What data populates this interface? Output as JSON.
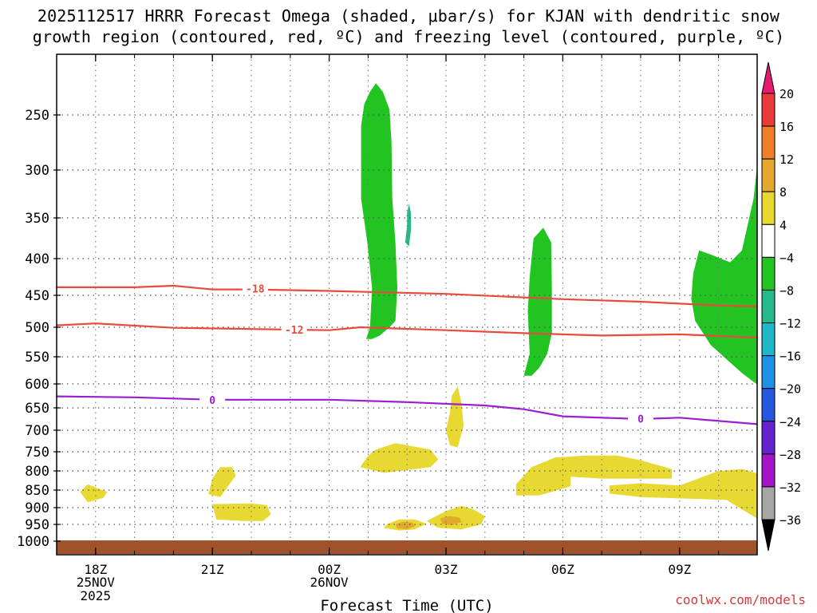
{
  "chart_data": {
    "type": "heatmap",
    "title_line1": "2025112517 HRRR Forecast Omega (shaded, μbar/s) for KJAN with dendritic snow",
    "title_line2": "growth region (contoured, red, ºC) and freezing level (contoured, purple, ºC)",
    "xlabel": "Forecast Time (UTC)",
    "ylabel": "",
    "x_ticks": [
      {
        "hour": 1,
        "label": "18Z",
        "date": "25NOV",
        "year": "2025"
      },
      {
        "hour": 4,
        "label": "21Z"
      },
      {
        "hour": 7,
        "label": "00Z",
        "date": "26NOV"
      },
      {
        "hour": 10,
        "label": "03Z"
      },
      {
        "hour": 13,
        "label": "06Z"
      },
      {
        "hour": 16,
        "label": "09Z"
      }
    ],
    "xlim": [
      0,
      18.5
    ],
    "y_ticks": [
      250,
      300,
      350,
      400,
      450,
      500,
      550,
      600,
      650,
      700,
      750,
      800,
      850,
      900,
      950,
      1000
    ],
    "ylim_hPa": [
      200,
      1030
    ],
    "colorbar": {
      "labels": [
        "20",
        "16",
        "12",
        "8",
        "4",
        "−4",
        "−8",
        "−12",
        "−16",
        "−20",
        "−24",
        "−28",
        "−32",
        "−36"
      ],
      "colors": [
        "#e61973",
        "#e83a3a",
        "#f07f2a",
        "#e3a92f",
        "#e7d832",
        "#ffffff",
        "#21c421",
        "#26b98a",
        "#1fb8c8",
        "#1e90e6",
        "#2456e0",
        "#6423cf",
        "#a414c8",
        "#a6a6a6",
        "#000000"
      ]
    },
    "contours": [
      {
        "label": "-18",
        "color": "#e84a3c",
        "points": [
          [
            0,
            439
          ],
          [
            2,
            439
          ],
          [
            3,
            437
          ],
          [
            4,
            442
          ],
          [
            5,
            442
          ],
          [
            7,
            444
          ],
          [
            10,
            448
          ],
          [
            13,
            456
          ],
          [
            15,
            460
          ],
          [
            17,
            466
          ],
          [
            18.5,
            468
          ]
        ],
        "label_at": [
          5.1,
          441
        ]
      },
      {
        "label": "-12",
        "color": "#e84a3c",
        "points": [
          [
            0,
            497
          ],
          [
            1,
            494
          ],
          [
            3,
            501
          ],
          [
            5,
            503
          ],
          [
            7,
            505
          ],
          [
            7.8,
            500
          ],
          [
            10,
            505
          ],
          [
            12,
            510
          ],
          [
            14,
            514
          ],
          [
            16,
            512
          ],
          [
            18.5,
            519
          ]
        ],
        "label_at": [
          6.1,
          504
        ]
      },
      {
        "label": "0",
        "color": "#9b1fd0",
        "points": [
          [
            0,
            626
          ],
          [
            2,
            628
          ],
          [
            4,
            633
          ],
          [
            7,
            633
          ],
          [
            9,
            638
          ],
          [
            11,
            645
          ],
          [
            12,
            653
          ],
          [
            13,
            669
          ],
          [
            15,
            675
          ],
          [
            16,
            672
          ],
          [
            18.5,
            690
          ]
        ],
        "label_at": [
          4.0,
          633
        ],
        "label2_at": [
          15.0,
          674
        ]
      }
    ],
    "shaded_regions": [
      {
        "value": "-4 to -8",
        "color": "#21c421",
        "outline": [
          [
            7.95,
            520
          ],
          [
            8.05,
            500
          ],
          [
            8.1,
            440
          ],
          [
            7.98,
            380
          ],
          [
            7.82,
            330
          ],
          [
            7.82,
            260
          ],
          [
            7.9,
            240
          ],
          [
            8.05,
            228
          ],
          [
            8.2,
            220
          ],
          [
            8.38,
            228
          ],
          [
            8.55,
            245
          ],
          [
            8.6,
            275
          ],
          [
            8.62,
            330
          ],
          [
            8.7,
            380
          ],
          [
            8.75,
            440
          ],
          [
            8.7,
            490
          ],
          [
            8.55,
            500
          ],
          [
            8.3,
            514
          ],
          [
            8.1,
            520
          ]
        ]
      },
      {
        "value": "-8 to -12",
        "color": "#26b98a",
        "outline": [
          [
            8.95,
            380
          ],
          [
            9.0,
            360
          ],
          [
            9.0,
            345
          ],
          [
            9.05,
            335
          ],
          [
            9.1,
            345
          ],
          [
            9.1,
            365
          ],
          [
            9.05,
            385
          ]
        ]
      },
      {
        "value": "-4 to -8",
        "color": "#21c421",
        "outline": [
          [
            12.0,
            585
          ],
          [
            12.15,
            545
          ],
          [
            12.1,
            475
          ],
          [
            12.15,
            425
          ],
          [
            12.25,
            375
          ],
          [
            12.5,
            362
          ],
          [
            12.7,
            380
          ],
          [
            12.72,
            440
          ],
          [
            12.72,
            510
          ],
          [
            12.6,
            545
          ],
          [
            12.4,
            570
          ],
          [
            12.2,
            585
          ]
        ]
      },
      {
        "value": "-4 to -8",
        "color": "#21c421",
        "outline": [
          [
            16.3,
            455
          ],
          [
            16.35,
            420
          ],
          [
            16.5,
            390
          ],
          [
            16.8,
            395
          ],
          [
            17.3,
            405
          ],
          [
            17.6,
            390
          ],
          [
            17.9,
            330
          ],
          [
            18.1,
            260
          ],
          [
            18.3,
            238
          ],
          [
            18.5,
            230
          ],
          [
            18.5,
            650
          ],
          [
            18.1,
            608
          ],
          [
            17.6,
            580
          ],
          [
            16.8,
            530
          ],
          [
            16.4,
            490
          ]
        ]
      },
      {
        "value": "4 to 8",
        "color": "#e7d832",
        "outline": [
          [
            7.8,
            790
          ],
          [
            8.0,
            760
          ],
          [
            8.2,
            745
          ],
          [
            8.7,
            730
          ],
          [
            9.6,
            745
          ],
          [
            9.8,
            770
          ],
          [
            9.6,
            790
          ],
          [
            8.4,
            805
          ]
        ]
      },
      {
        "value": "4 to 8",
        "color": "#e7d832",
        "outline": [
          [
            10.0,
            700
          ],
          [
            10.1,
            660
          ],
          [
            10.15,
            625
          ],
          [
            10.3,
            605
          ],
          [
            10.4,
            640
          ],
          [
            10.45,
            690
          ],
          [
            10.3,
            740
          ],
          [
            10.1,
            735
          ]
        ]
      },
      {
        "value": "4 to 8",
        "color": "#e7d832",
        "outline": [
          [
            3.9,
            862
          ],
          [
            4.0,
            820
          ],
          [
            4.2,
            790
          ],
          [
            4.5,
            790
          ],
          [
            4.6,
            812
          ],
          [
            4.4,
            840
          ],
          [
            4.2,
            870
          ]
        ]
      },
      {
        "value": "4 to 8",
        "color": "#e7d832",
        "outline": [
          [
            0.6,
            855
          ],
          [
            0.8,
            835
          ],
          [
            1.0,
            843
          ],
          [
            1.3,
            855
          ],
          [
            1.2,
            872
          ],
          [
            0.8,
            885
          ]
        ]
      },
      {
        "value": "4 to 8",
        "color": "#e7d832",
        "outline": [
          [
            4.0,
            890
          ],
          [
            5.0,
            888
          ],
          [
            5.4,
            893
          ],
          [
            5.5,
            920
          ],
          [
            5.3,
            940
          ],
          [
            4.8,
            940
          ],
          [
            4.1,
            935
          ]
        ]
      },
      {
        "value": "4 to 8",
        "color": "#e7d832",
        "outline": [
          [
            8.5,
            948
          ],
          [
            8.8,
            935
          ],
          [
            9.2,
            935
          ],
          [
            9.5,
            948
          ],
          [
            9.2,
            965
          ],
          [
            8.8,
            968
          ],
          [
            8.4,
            960
          ]
        ]
      },
      {
        "value": "4 to 8",
        "color": "#e7d832",
        "outline": [
          [
            9.5,
            940
          ],
          [
            10.0,
            910
          ],
          [
            10.4,
            895
          ],
          [
            10.7,
            905
          ],
          [
            11.0,
            925
          ],
          [
            10.9,
            950
          ],
          [
            10.4,
            965
          ],
          [
            9.8,
            960
          ]
        ]
      },
      {
        "value": "4 to 8",
        "color": "#e7d832",
        "outline": [
          [
            11.8,
            835
          ],
          [
            12.2,
            790
          ],
          [
            12.8,
            765
          ],
          [
            13.6,
            760
          ],
          [
            14.4,
            760
          ],
          [
            15.0,
            772
          ],
          [
            15.8,
            795
          ],
          [
            15.8,
            820
          ],
          [
            14.0,
            820
          ],
          [
            13.2,
            815
          ],
          [
            13.2,
            840
          ],
          [
            12.4,
            865
          ],
          [
            11.8,
            865
          ]
        ]
      },
      {
        "value": "4 to 8",
        "color": "#e7d832",
        "outline": [
          [
            14.2,
            838
          ],
          [
            15.0,
            832
          ],
          [
            16.0,
            838
          ],
          [
            17.0,
            800
          ],
          [
            17.6,
            795
          ],
          [
            18.5,
            820
          ],
          [
            18.5,
            960
          ],
          [
            18.1,
            940
          ],
          [
            17.2,
            878
          ],
          [
            16.4,
            875
          ],
          [
            15.0,
            870
          ],
          [
            14.2,
            860
          ]
        ]
      },
      {
        "value": "8 to 12",
        "color": "#e3a92f",
        "outline": [
          [
            8.7,
            950
          ],
          [
            8.9,
            942
          ],
          [
            9.15,
            945
          ],
          [
            9.2,
            955
          ],
          [
            9.0,
            965
          ],
          [
            8.75,
            962
          ]
        ]
      },
      {
        "value": "8 to 12",
        "color": "#e3a92f",
        "outline": [
          [
            9.85,
            932
          ],
          [
            10.1,
            925
          ],
          [
            10.35,
            930
          ],
          [
            10.4,
            943
          ],
          [
            10.15,
            952
          ],
          [
            9.9,
            948
          ]
        ]
      }
    ]
  },
  "credit": "coolwx.com/models"
}
